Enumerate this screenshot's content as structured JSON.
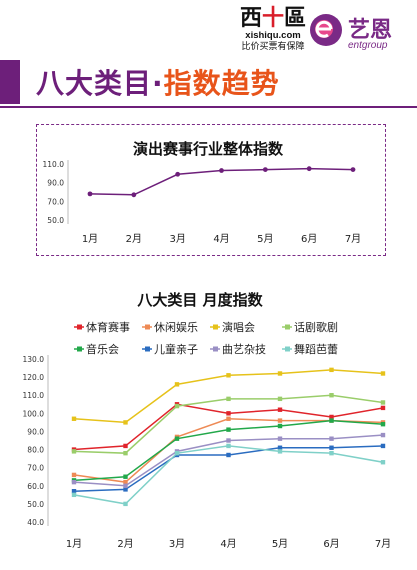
{
  "header": {
    "title_part1": "八大类目·",
    "title_part2": "指数趋势",
    "logo1": {
      "cn_left": "西",
      "cn_plus": "十",
      "cn_right": "區",
      "url": "xishiqu.com",
      "slogan": "比价买票有保障"
    },
    "logo2": {
      "cn": "艺恩",
      "en": "entgroup"
    },
    "accent_purple": "#6d1f7a",
    "accent_orange": "#e8541a"
  },
  "chart_data": [
    {
      "type": "line",
      "title": "演出赛事行业整体指数",
      "categories": [
        "1月",
        "2月",
        "3月",
        "4月",
        "5月",
        "6月",
        "7月"
      ],
      "y_ticks": [
        "110.0",
        "90.0",
        "70.0",
        "50.0"
      ],
      "ylim": [
        50,
        110
      ],
      "grid": false,
      "series": [
        {
          "values": [
            78,
            77,
            99,
            103,
            104,
            105,
            104
          ],
          "color": "#6d1f7a"
        }
      ]
    },
    {
      "type": "line",
      "title": "八大类目 月度指数",
      "categories": [
        "1月",
        "2月",
        "3月",
        "4月",
        "5月",
        "6月",
        "7月"
      ],
      "y_ticks": [
        "130.0",
        "120.0",
        "110.0",
        "100.0",
        "90.0",
        "80.0",
        "70.0",
        "60.0",
        "50.0",
        "40.0"
      ],
      "ylim": [
        40,
        130
      ],
      "grid": false,
      "legend": "top",
      "series": [
        {
          "name": "体育赛事",
          "color": "#e0242b",
          "values": [
            80,
            82,
            105,
            100,
            102,
            98,
            103
          ]
        },
        {
          "name": "休闲娱乐",
          "color": "#ee8a55",
          "values": [
            66,
            62,
            87,
            97,
            96,
            96,
            95
          ]
        },
        {
          "name": "演唱会",
          "color": "#e6c21a",
          "values": [
            97,
            95,
            116,
            121,
            122,
            124,
            122
          ]
        },
        {
          "name": "话剧歌剧",
          "color": "#9acd6a",
          "values": [
            79,
            78,
            104,
            108,
            108,
            110,
            106
          ]
        },
        {
          "name": "音乐会",
          "color": "#22a84a",
          "values": [
            63,
            65,
            86,
            91,
            93,
            96,
            94
          ]
        },
        {
          "name": "儿童亲子",
          "color": "#2a6cc0",
          "values": [
            57,
            58,
            77,
            77,
            81,
            81,
            82
          ]
        },
        {
          "name": "曲艺杂技",
          "color": "#9a8fc4",
          "values": [
            62,
            60,
            79,
            85,
            86,
            86,
            88
          ]
        },
        {
          "name": "舞蹈芭蕾",
          "color": "#7fd0c8",
          "values": [
            55,
            50,
            78,
            82,
            79,
            78,
            73
          ]
        }
      ]
    }
  ]
}
